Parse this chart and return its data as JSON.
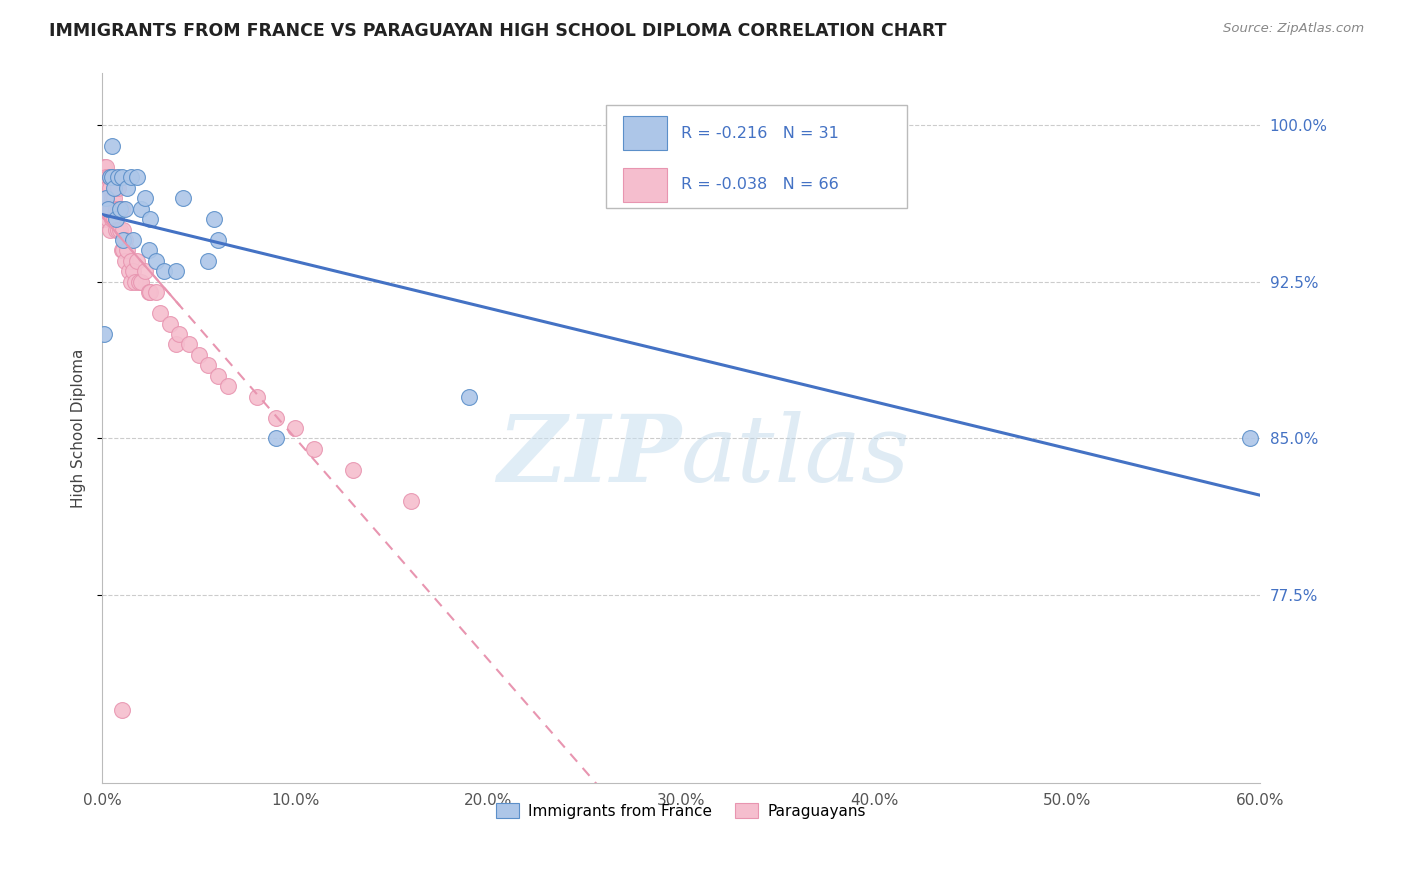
{
  "title": "IMMIGRANTS FROM FRANCE VS PARAGUAYAN HIGH SCHOOL DIPLOMA CORRELATION CHART",
  "source": "Source: ZipAtlas.com",
  "ylabel": "High School Diploma",
  "yticks": [
    0.775,
    0.85,
    0.925,
    1.0
  ],
  "ytick_labels": [
    "77.5%",
    "85.0%",
    "92.5%",
    "100.0%"
  ],
  "xlim": [
    0.0,
    0.6
  ],
  "ylim": [
    0.685,
    1.025
  ],
  "watermark_zip": "ZIP",
  "watermark_atlas": "atlas",
  "legend_blue_r": "-0.216",
  "legend_blue_n": "31",
  "legend_pink_r": "-0.038",
  "legend_pink_n": "66",
  "legend_label_blue": "Immigrants from France",
  "legend_label_pink": "Paraguayans",
  "blue_color": "#adc6e8",
  "pink_color": "#f5bece",
  "blue_edge_color": "#5b8fc9",
  "pink_edge_color": "#e895b0",
  "blue_line_color": "#4472c4",
  "pink_line_color": "#e895b0",
  "blue_x": [
    0.001,
    0.002,
    0.003,
    0.004,
    0.005,
    0.005,
    0.006,
    0.007,
    0.008,
    0.009,
    0.01,
    0.011,
    0.012,
    0.013,
    0.015,
    0.016,
    0.018,
    0.02,
    0.022,
    0.024,
    0.025,
    0.028,
    0.032,
    0.038,
    0.042,
    0.055,
    0.058,
    0.06,
    0.09,
    0.19,
    0.595
  ],
  "blue_y": [
    0.9,
    0.965,
    0.96,
    0.975,
    0.975,
    0.99,
    0.97,
    0.955,
    0.975,
    0.96,
    0.975,
    0.945,
    0.96,
    0.97,
    0.975,
    0.945,
    0.975,
    0.96,
    0.965,
    0.94,
    0.955,
    0.935,
    0.93,
    0.93,
    0.965,
    0.935,
    0.955,
    0.945,
    0.85,
    0.87,
    0.85
  ],
  "pink_x": [
    0.001,
    0.001,
    0.001,
    0.001,
    0.001,
    0.002,
    0.002,
    0.002,
    0.002,
    0.003,
    0.003,
    0.003,
    0.003,
    0.004,
    0.004,
    0.004,
    0.004,
    0.005,
    0.005,
    0.005,
    0.006,
    0.006,
    0.006,
    0.007,
    0.007,
    0.007,
    0.008,
    0.008,
    0.008,
    0.009,
    0.009,
    0.01,
    0.01,
    0.011,
    0.011,
    0.012,
    0.012,
    0.013,
    0.014,
    0.015,
    0.015,
    0.016,
    0.017,
    0.018,
    0.019,
    0.02,
    0.022,
    0.024,
    0.025,
    0.028,
    0.03,
    0.035,
    0.038,
    0.04,
    0.045,
    0.05,
    0.055,
    0.06,
    0.065,
    0.08,
    0.09,
    0.1,
    0.11,
    0.13,
    0.16,
    0.01
  ],
  "pink_y": [
    0.98,
    0.975,
    0.965,
    0.96,
    0.955,
    0.98,
    0.975,
    0.97,
    0.96,
    0.975,
    0.97,
    0.965,
    0.955,
    0.975,
    0.97,
    0.96,
    0.95,
    0.975,
    0.965,
    0.955,
    0.975,
    0.965,
    0.955,
    0.97,
    0.96,
    0.95,
    0.97,
    0.96,
    0.95,
    0.96,
    0.95,
    0.96,
    0.94,
    0.95,
    0.94,
    0.945,
    0.935,
    0.94,
    0.93,
    0.935,
    0.925,
    0.93,
    0.925,
    0.935,
    0.925,
    0.925,
    0.93,
    0.92,
    0.92,
    0.92,
    0.91,
    0.905,
    0.895,
    0.9,
    0.895,
    0.89,
    0.885,
    0.88,
    0.875,
    0.87,
    0.86,
    0.855,
    0.845,
    0.835,
    0.82,
    0.72
  ]
}
